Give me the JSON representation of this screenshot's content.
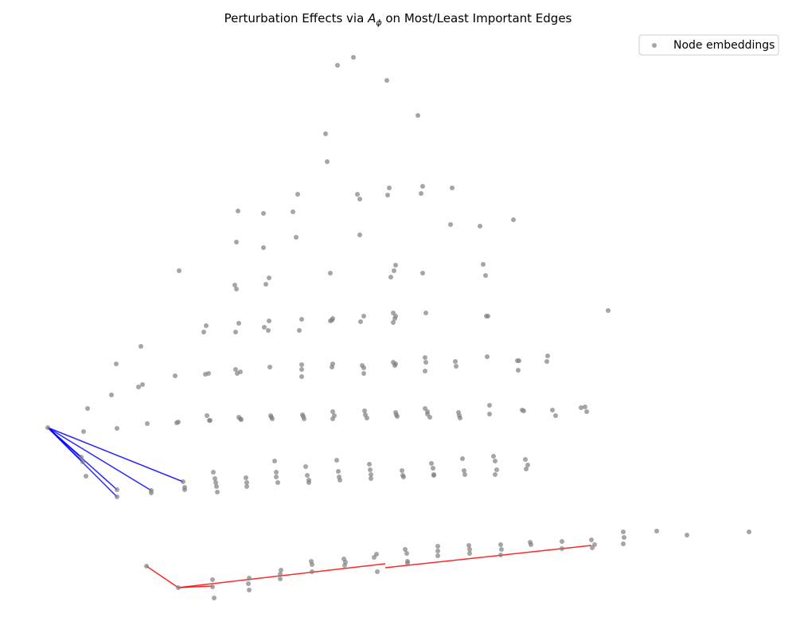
{
  "chart_data": {
    "type": "scatter",
    "title": {
      "prefix": "Perturbation Effects via ",
      "symbol": "A",
      "subscript": "ϕ",
      "suffix": " on Most/Least Important Edges"
    },
    "axes_visible": false,
    "grid": false,
    "legend": {
      "placement": "top-right",
      "entries": [
        "Node embeddings"
      ]
    },
    "colors": {
      "points": "#808080",
      "most_important_edges": "#0000ff",
      "least_important_edges": "#ff0000"
    },
    "series": [
      {
        "name": "Node embeddings",
        "points": [
          [
            424,
            82
          ],
          [
            444,
            72
          ],
          [
            486,
            101
          ],
          [
            525,
            145
          ],
          [
            409,
            168
          ],
          [
            411,
            203
          ],
          [
            374,
            244
          ],
          [
            449,
            244
          ],
          [
            452,
            250
          ],
          [
            487,
            245
          ],
          [
            489,
            236
          ],
          [
            531,
            234
          ],
          [
            529,
            243
          ],
          [
            568,
            236
          ],
          [
            299,
            265
          ],
          [
            331,
            268
          ],
          [
            368,
            266
          ],
          [
            566,
            282
          ],
          [
            603,
            284
          ],
          [
            645,
            276
          ],
          [
            297,
            304
          ],
          [
            331,
            311
          ],
          [
            372,
            298
          ],
          [
            452,
            295
          ],
          [
            225,
            340
          ],
          [
            295,
            358
          ],
          [
            297,
            363
          ],
          [
            334,
            357
          ],
          [
            338,
            349
          ],
          [
            415,
            343
          ],
          [
            497,
            333
          ],
          [
            495,
            340
          ],
          [
            491,
            348
          ],
          [
            531,
            343
          ],
          [
            607,
            332
          ],
          [
            610,
            346
          ],
          [
            764,
            390
          ],
          [
            177,
            435
          ],
          [
            259,
            409
          ],
          [
            256,
            417
          ],
          [
            296,
            417
          ],
          [
            300,
            406
          ],
          [
            332,
            411
          ],
          [
            338,
            403
          ],
          [
            337,
            415
          ],
          [
            376,
            415
          ],
          [
            379,
            401
          ],
          [
            415,
            403
          ],
          [
            418,
            400
          ],
          [
            417,
            402
          ],
          [
            453,
            404
          ],
          [
            457,
            397
          ],
          [
            494,
            393
          ],
          [
            497,
            397
          ],
          [
            494,
            405
          ],
          [
            496,
            400
          ],
          [
            535,
            393
          ],
          [
            611,
            397
          ],
          [
            613,
            397
          ],
          [
            146,
            457
          ],
          [
            140,
            496
          ],
          [
            110,
            513
          ],
          [
            174,
            486
          ],
          [
            179,
            483
          ],
          [
            220,
            472
          ],
          [
            258,
            470
          ],
          [
            262,
            469
          ],
          [
            296,
            464
          ],
          [
            298,
            469
          ],
          [
            302,
            467
          ],
          [
            339,
            461
          ],
          [
            379,
            458
          ],
          [
            379,
            464
          ],
          [
            379,
            473
          ],
          [
            417,
            461
          ],
          [
            418,
            457
          ],
          [
            455,
            459
          ],
          [
            457,
            462
          ],
          [
            457,
            469
          ],
          [
            494,
            455
          ],
          [
            496,
            459
          ],
          [
            497,
            457
          ],
          [
            534,
            449
          ],
          [
            535,
            455
          ],
          [
            534,
            466
          ],
          [
            572,
            454
          ],
          [
            573,
            460
          ],
          [
            612,
            448
          ],
          [
            650,
            453
          ],
          [
            652,
            453
          ],
          [
            651,
            465
          ],
          [
            688,
            447
          ],
          [
            687,
            454
          ],
          [
            60,
            537
          ],
          [
            105,
            542
          ],
          [
            147,
            538
          ],
          [
            185,
            532
          ],
          [
            224,
            530
          ],
          [
            222,
            531
          ],
          [
            260,
            522
          ],
          [
            263,
            528
          ],
          [
            264,
            528
          ],
          [
            300,
            524
          ],
          [
            303,
            527
          ],
          [
            302,
            526
          ],
          [
            340,
            522
          ],
          [
            342,
            526
          ],
          [
            341,
            524
          ],
          [
            380,
            521
          ],
          [
            382,
            526
          ],
          [
            381,
            523
          ],
          [
            418,
            517
          ],
          [
            418,
            526
          ],
          [
            420,
            522
          ],
          [
            458,
            516
          ],
          [
            461,
            525
          ],
          [
            459,
            521
          ],
          [
            497,
            518
          ],
          [
            499,
            523
          ],
          [
            498,
            521
          ],
          [
            534,
            513
          ],
          [
            537,
            520
          ],
          [
            540,
            524
          ],
          [
            537,
            517
          ],
          [
            576,
            518
          ],
          [
            578,
            525
          ],
          [
            577,
            522
          ],
          [
            615,
            509
          ],
          [
            615,
            520
          ],
          [
            656,
            515
          ],
          [
            658,
            516
          ],
          [
            694,
            515
          ],
          [
            698,
            522
          ],
          [
            730,
            512
          ],
          [
            735,
            511
          ],
          [
            737,
            517
          ],
          [
            102,
            574
          ],
          [
            104,
            580
          ],
          [
            108,
            598
          ],
          [
            147,
            615
          ],
          [
            147,
            624
          ],
          [
            190,
            616
          ],
          [
            190,
            619
          ],
          [
            230,
            605
          ],
          [
            232,
            612
          ],
          [
            232,
            615
          ],
          [
            268,
            593
          ],
          [
            270,
            601
          ],
          [
            271,
            606
          ],
          [
            272,
            611
          ],
          [
            273,
            618
          ],
          [
            309,
            600
          ],
          [
            310,
            606
          ],
          [
            310,
            611
          ],
          [
            345,
            579
          ],
          [
            347,
            593
          ],
          [
            347,
            599
          ],
          [
            349,
            606
          ],
          [
            384,
            586
          ],
          [
            386,
            597
          ],
          [
            388,
            603
          ],
          [
            388,
            606
          ],
          [
            423,
            578
          ],
          [
            425,
            592
          ],
          [
            426,
            599
          ],
          [
            427,
            603
          ],
          [
            464,
            583
          ],
          [
            465,
            590
          ],
          [
            466,
            596
          ],
          [
            466,
            601
          ],
          [
            505,
            591
          ],
          [
            506,
            597
          ],
          [
            507,
            599
          ],
          [
            542,
            582
          ],
          [
            544,
            588
          ],
          [
            545,
            596
          ],
          [
            545,
            597
          ],
          [
            581,
            576
          ],
          [
            583,
            591
          ],
          [
            584,
            596
          ],
          [
            620,
            573
          ],
          [
            622,
            579
          ],
          [
            624,
            590
          ],
          [
            622,
            596
          ],
          [
            660,
            577
          ],
          [
            663,
            584
          ],
          [
            661,
            589
          ],
          [
            184,
            711
          ],
          [
            224,
            738
          ],
          [
            267,
            728
          ],
          [
            267,
            737
          ],
          [
            269,
            751
          ],
          [
            313,
            726
          ],
          [
            312,
            733
          ],
          [
            313,
            741
          ],
          [
            353,
            716
          ],
          [
            352,
            721
          ],
          [
            352,
            727
          ],
          [
            391,
            705
          ],
          [
            392,
            709
          ],
          [
            392,
            718
          ],
          [
            432,
            702
          ],
          [
            433,
            710
          ],
          [
            434,
            706
          ],
          [
            473,
            696
          ],
          [
            470,
            700
          ],
          [
            474,
            718
          ],
          [
            509,
            690
          ],
          [
            511,
            695
          ],
          [
            512,
            705
          ],
          [
            512,
            707
          ],
          [
            550,
            686
          ],
          [
            550,
            692
          ],
          [
            550,
            698
          ],
          [
            589,
            685
          ],
          [
            590,
            690
          ],
          [
            590,
            695
          ],
          [
            629,
            684
          ],
          [
            630,
            690
          ],
          [
            629,
            697
          ],
          [
            666,
            681
          ],
          [
            667,
            684
          ],
          [
            706,
            680
          ],
          [
            706,
            689
          ],
          [
            743,
            678
          ],
          [
            744,
            688
          ],
          [
            747,
            684
          ],
          [
            783,
            668
          ],
          [
            784,
            675
          ],
          [
            783,
            683
          ],
          [
            825,
            667
          ],
          [
            863,
            672
          ],
          [
            941,
            668
          ]
        ]
      }
    ],
    "edges": {
      "most_important": [
        [
          [
            60,
            537
          ],
          [
            230,
            605
          ]
        ],
        [
          [
            60,
            537
          ],
          [
            147,
            615
          ]
        ],
        [
          [
            60,
            537
          ],
          [
            190,
            616
          ]
        ],
        [
          [
            60,
            537
          ],
          [
            104,
            580
          ]
        ],
        [
          [
            60,
            537
          ],
          [
            102,
            574
          ]
        ],
        [
          [
            60,
            537
          ],
          [
            147,
            624
          ]
        ]
      ],
      "least_important": [
        [
          [
            184,
            711
          ],
          [
            224,
            738
          ]
        ],
        [
          [
            224,
            738
          ],
          [
            267,
            736
          ]
        ],
        [
          [
            224,
            738
          ],
          [
            484,
            708
          ]
        ],
        [
          [
            484,
            713
          ],
          [
            743,
            685
          ]
        ]
      ]
    }
  }
}
